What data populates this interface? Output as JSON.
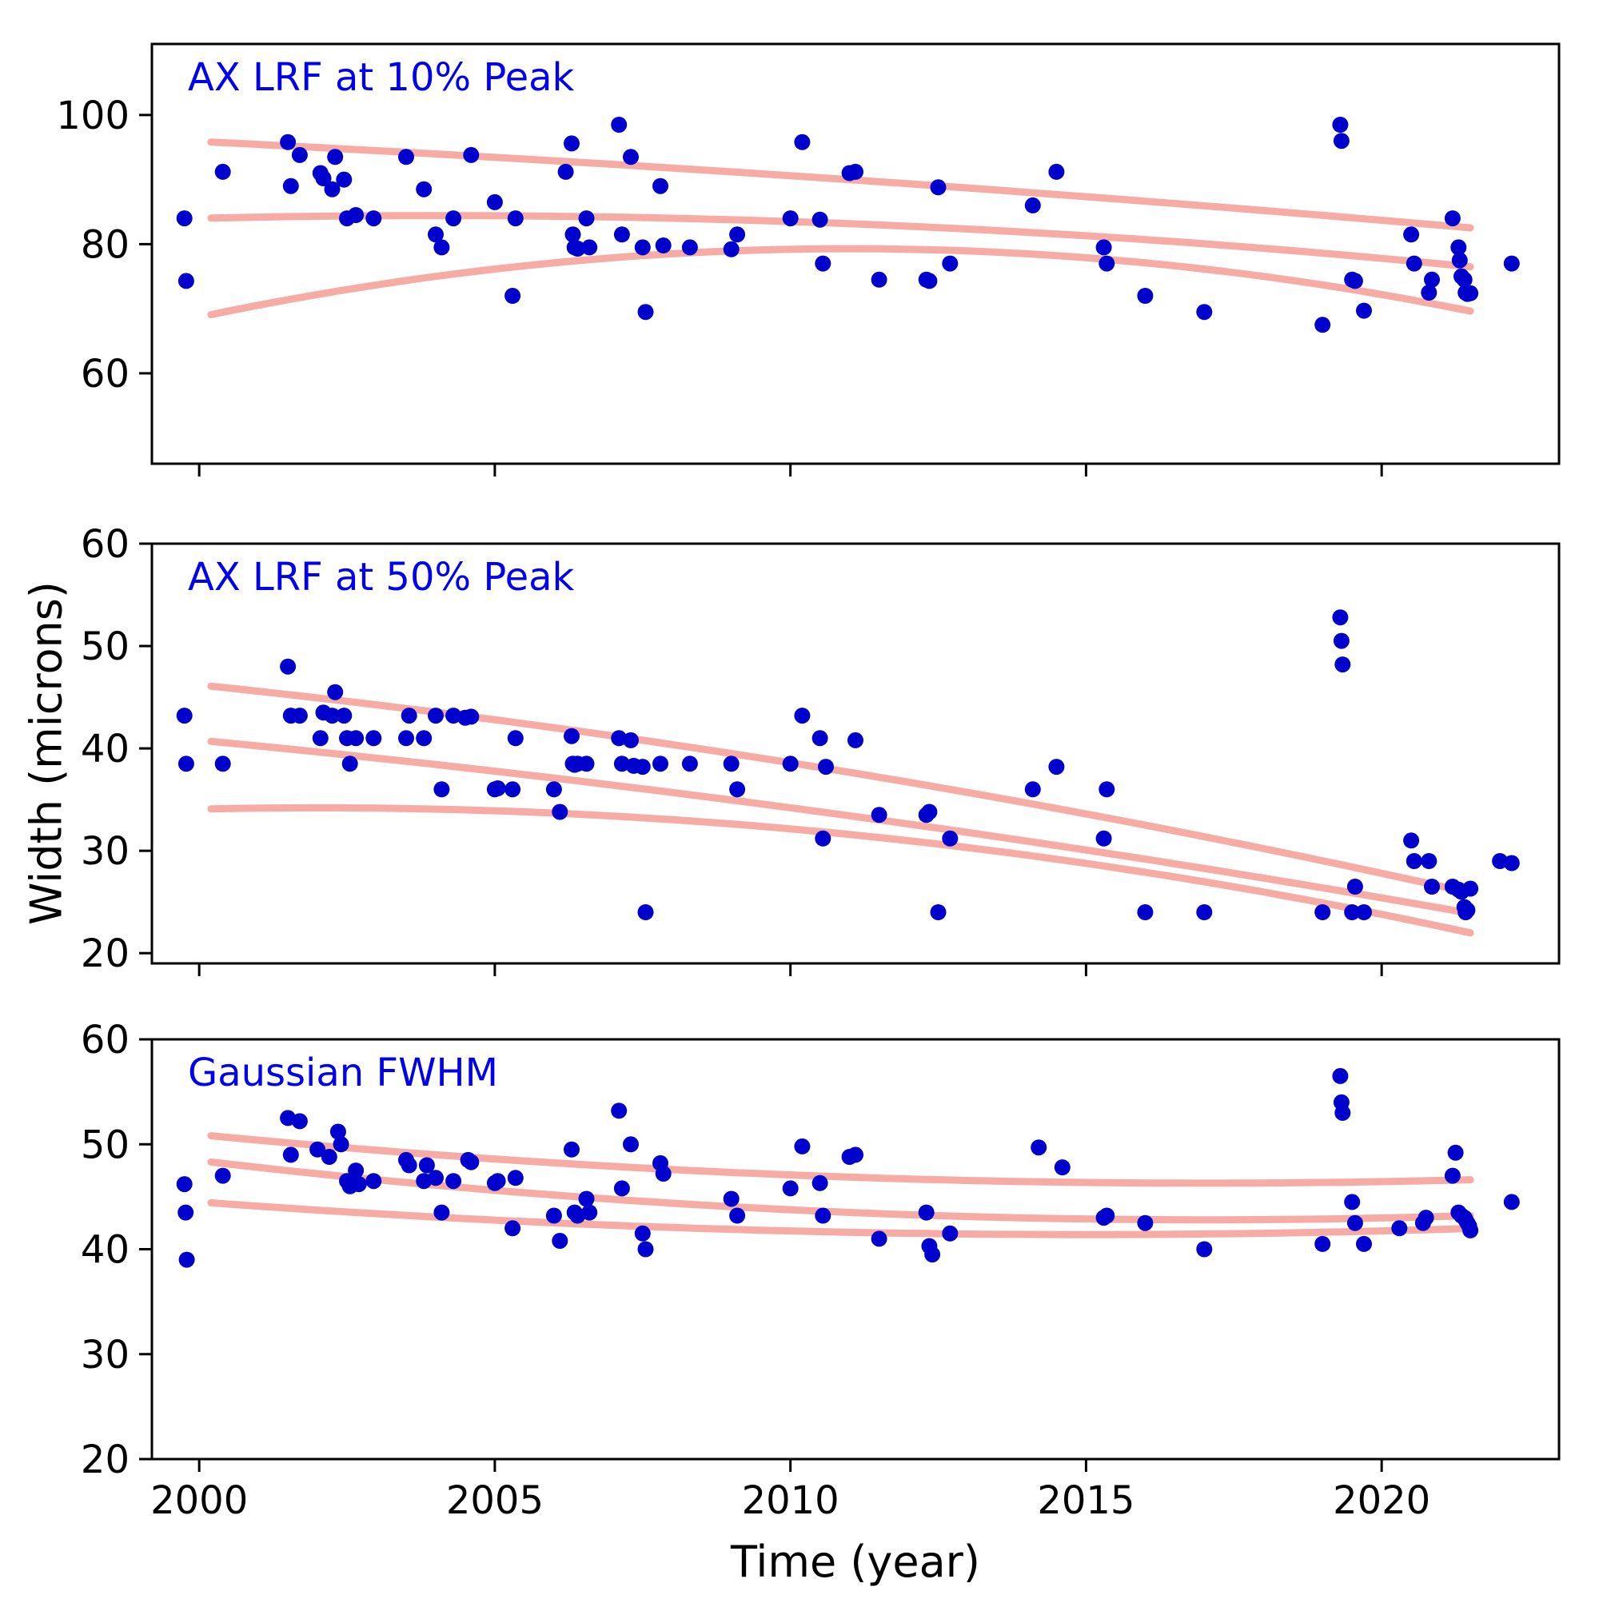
{
  "figure": {
    "background": "#ffffff",
    "point_color": "#0000cd",
    "fit_color": "#f5a6a0",
    "axis_color": "#000000",
    "title_color": "#0000ee"
  },
  "axes": {
    "xlabel": "Time (year)",
    "ylabel": "Width (microns)"
  },
  "chart_data": [
    {
      "type": "scatter",
      "title": "AX LRF at 10% Peak",
      "xlabel": "",
      "ylabel": "",
      "xlim": [
        1999.2,
        2023.0
      ],
      "ylim": [
        46,
        111
      ],
      "xticks": [
        2000,
        2005,
        2010,
        2015,
        2020
      ],
      "show_xtick_labels": false,
      "yticks": [
        60,
        80,
        100
      ],
      "legend": "none",
      "grid": false,
      "points": [
        [
          1999.75,
          84.0
        ],
        [
          1999.78,
          74.3
        ],
        [
          2000.4,
          91.2
        ],
        [
          2001.5,
          95.8
        ],
        [
          2001.55,
          89.0
        ],
        [
          2001.7,
          93.8
        ],
        [
          2002.05,
          91.0
        ],
        [
          2002.1,
          90.2
        ],
        [
          2002.25,
          88.5
        ],
        [
          2002.3,
          93.5
        ],
        [
          2002.45,
          90.0
        ],
        [
          2002.5,
          84.0
        ],
        [
          2002.65,
          84.5
        ],
        [
          2002.95,
          84.0
        ],
        [
          2003.5,
          93.5
        ],
        [
          2003.8,
          88.5
        ],
        [
          2004.0,
          81.5
        ],
        [
          2004.1,
          79.5
        ],
        [
          2004.3,
          84.0
        ],
        [
          2004.6,
          93.8
        ],
        [
          2005.0,
          86.5
        ],
        [
          2005.3,
          72.0
        ],
        [
          2005.35,
          84.0
        ],
        [
          2006.2,
          91.2
        ],
        [
          2006.3,
          95.6
        ],
        [
          2006.32,
          81.5
        ],
        [
          2006.35,
          79.5
        ],
        [
          2006.4,
          79.3
        ],
        [
          2006.55,
          84.0
        ],
        [
          2006.6,
          79.5
        ],
        [
          2007.1,
          98.5
        ],
        [
          2007.15,
          81.5
        ],
        [
          2007.3,
          93.5
        ],
        [
          2007.5,
          79.5
        ],
        [
          2007.55,
          69.5
        ],
        [
          2007.8,
          89.0
        ],
        [
          2007.85,
          79.8
        ],
        [
          2008.3,
          79.5
        ],
        [
          2009.0,
          79.2
        ],
        [
          2009.1,
          81.5
        ],
        [
          2010.0,
          84.0
        ],
        [
          2010.2,
          95.8
        ],
        [
          2010.5,
          83.8
        ],
        [
          2010.55,
          77.0
        ],
        [
          2011.0,
          91.0
        ],
        [
          2011.1,
          91.2
        ],
        [
          2011.5,
          74.5
        ],
        [
          2012.3,
          74.5
        ],
        [
          2012.35,
          74.3
        ],
        [
          2012.5,
          88.8
        ],
        [
          2012.7,
          77.0
        ],
        [
          2014.1,
          86.0
        ],
        [
          2014.5,
          91.2
        ],
        [
          2015.3,
          79.5
        ],
        [
          2015.35,
          77.0
        ],
        [
          2016.0,
          72.0
        ],
        [
          2017.0,
          69.5
        ],
        [
          2019.0,
          67.5
        ],
        [
          2019.3,
          98.5
        ],
        [
          2019.32,
          96.0
        ],
        [
          2019.5,
          74.5
        ],
        [
          2019.55,
          74.3
        ],
        [
          2019.7,
          69.7
        ],
        [
          2020.5,
          81.5
        ],
        [
          2020.55,
          77.0
        ],
        [
          2020.8,
          72.5
        ],
        [
          2020.85,
          74.5
        ],
        [
          2021.2,
          84.0
        ],
        [
          2021.3,
          79.5
        ],
        [
          2021.32,
          77.5
        ],
        [
          2021.35,
          75.0
        ],
        [
          2021.4,
          74.5
        ],
        [
          2021.42,
          72.5
        ],
        [
          2021.45,
          72.3
        ],
        [
          2021.5,
          72.4
        ],
        [
          2022.2,
          77.0
        ]
      ],
      "fits": [
        {
          "a": -0.008,
          "b": -0.45,
          "c": 95.9,
          "x0": 2000.2,
          "x1": 2021.5
        },
        {
          "a": -0.026,
          "b": 0.21,
          "c": 84.0,
          "x0": 2000.2,
          "x1": 2021.5
        },
        {
          "a": -0.0876,
          "b": 1.927,
          "c": 68.7,
          "x0": 2000.2,
          "x1": 2021.5
        }
      ]
    },
    {
      "type": "scatter",
      "title": "AX LRF at 50% Peak",
      "xlabel": "",
      "ylabel": "Width (microns)",
      "xlim": [
        1999.2,
        2023.0
      ],
      "ylim": [
        19,
        60
      ],
      "xticks": [
        2000,
        2005,
        2010,
        2015,
        2020
      ],
      "show_xtick_labels": false,
      "yticks": [
        20,
        30,
        40,
        50,
        60
      ],
      "legend": "none",
      "grid": false,
      "points": [
        [
          1999.75,
          43.2
        ],
        [
          1999.78,
          38.5
        ],
        [
          2000.4,
          38.5
        ],
        [
          2001.5,
          48.0
        ],
        [
          2001.55,
          43.2
        ],
        [
          2001.7,
          43.2
        ],
        [
          2002.05,
          41.0
        ],
        [
          2002.1,
          43.5
        ],
        [
          2002.25,
          43.2
        ],
        [
          2002.3,
          45.5
        ],
        [
          2002.45,
          43.2
        ],
        [
          2002.5,
          41.0
        ],
        [
          2002.55,
          38.5
        ],
        [
          2002.65,
          41.0
        ],
        [
          2002.95,
          41.0
        ],
        [
          2003.5,
          41.0
        ],
        [
          2003.55,
          43.2
        ],
        [
          2003.8,
          41.0
        ],
        [
          2004.0,
          43.2
        ],
        [
          2004.1,
          36.0
        ],
        [
          2004.3,
          43.2
        ],
        [
          2004.5,
          43.0
        ],
        [
          2004.6,
          43.1
        ],
        [
          2005.0,
          36.0
        ],
        [
          2005.05,
          36.1
        ],
        [
          2005.3,
          36.0
        ],
        [
          2005.35,
          41.0
        ],
        [
          2006.0,
          36.0
        ],
        [
          2006.1,
          33.8
        ],
        [
          2006.3,
          41.2
        ],
        [
          2006.32,
          38.5
        ],
        [
          2006.35,
          38.4
        ],
        [
          2006.4,
          38.5
        ],
        [
          2006.55,
          38.5
        ],
        [
          2007.1,
          41.0
        ],
        [
          2007.15,
          38.5
        ],
        [
          2007.3,
          40.8
        ],
        [
          2007.35,
          38.3
        ],
        [
          2007.5,
          38.2
        ],
        [
          2007.55,
          24.0
        ],
        [
          2007.8,
          38.5
        ],
        [
          2008.3,
          38.5
        ],
        [
          2009.0,
          38.5
        ],
        [
          2009.1,
          36.0
        ],
        [
          2010.0,
          38.5
        ],
        [
          2010.2,
          43.2
        ],
        [
          2010.5,
          41.0
        ],
        [
          2010.55,
          31.2
        ],
        [
          2010.6,
          38.2
        ],
        [
          2011.1,
          40.8
        ],
        [
          2011.5,
          33.5
        ],
        [
          2012.3,
          33.5
        ],
        [
          2012.35,
          33.8
        ],
        [
          2012.5,
          24.0
        ],
        [
          2012.7,
          31.2
        ],
        [
          2014.1,
          36.0
        ],
        [
          2014.5,
          38.2
        ],
        [
          2015.3,
          31.2
        ],
        [
          2015.35,
          36.0
        ],
        [
          2016.0,
          24.0
        ],
        [
          2017.0,
          24.0
        ],
        [
          2019.0,
          24.0
        ],
        [
          2019.3,
          52.8
        ],
        [
          2019.32,
          50.5
        ],
        [
          2019.34,
          48.2
        ],
        [
          2019.5,
          24.0
        ],
        [
          2019.55,
          26.5
        ],
        [
          2019.7,
          24.0
        ],
        [
          2020.5,
          31.0
        ],
        [
          2020.55,
          29.0
        ],
        [
          2020.8,
          29.0
        ],
        [
          2020.85,
          26.5
        ],
        [
          2021.2,
          26.5
        ],
        [
          2021.3,
          26.2
        ],
        [
          2021.35,
          26.0
        ],
        [
          2021.4,
          24.5
        ],
        [
          2021.42,
          24.0
        ],
        [
          2021.45,
          24.2
        ],
        [
          2021.5,
          26.3
        ],
        [
          2022.0,
          29.0
        ],
        [
          2022.2,
          28.8
        ]
      ],
      "fits": [
        {
          "a": -0.016,
          "b": -0.6,
          "c": 46.2,
          "x0": 2000.2,
          "x1": 2021.5
        },
        {
          "a": -0.011,
          "b": -0.55,
          "c": 40.8,
          "x0": 2000.2,
          "x1": 2021.5
        },
        {
          "a": -0.0321,
          "b": 0.128,
          "c": 34.07,
          "x0": 2000.2,
          "x1": 2021.5
        }
      ]
    },
    {
      "type": "scatter",
      "title": "Gaussian FWHM",
      "xlabel": "Time (year)",
      "ylabel": "",
      "xlim": [
        1999.2,
        2023.0
      ],
      "ylim": [
        20,
        60
      ],
      "xticks": [
        2000,
        2005,
        2010,
        2015,
        2020
      ],
      "show_xtick_labels": true,
      "yticks": [
        20,
        30,
        40,
        50,
        60
      ],
      "legend": "none",
      "grid": false,
      "points": [
        [
          1999.75,
          46.2
        ],
        [
          1999.77,
          43.5
        ],
        [
          1999.79,
          39.0
        ],
        [
          2000.4,
          47.0
        ],
        [
          2001.5,
          52.5
        ],
        [
          2001.55,
          49.0
        ],
        [
          2001.7,
          52.2
        ],
        [
          2002.0,
          49.5
        ],
        [
          2002.2,
          48.8
        ],
        [
          2002.35,
          51.2
        ],
        [
          2002.4,
          50.0
        ],
        [
          2002.5,
          46.5
        ],
        [
          2002.55,
          46.0
        ],
        [
          2002.65,
          47.5
        ],
        [
          2002.7,
          46.2
        ],
        [
          2002.95,
          46.5
        ],
        [
          2003.5,
          48.5
        ],
        [
          2003.55,
          48.0
        ],
        [
          2003.8,
          46.5
        ],
        [
          2003.85,
          48.0
        ],
        [
          2004.0,
          46.8
        ],
        [
          2004.1,
          43.5
        ],
        [
          2004.3,
          46.5
        ],
        [
          2004.55,
          48.5
        ],
        [
          2004.6,
          48.3
        ],
        [
          2005.0,
          46.3
        ],
        [
          2005.05,
          46.5
        ],
        [
          2005.3,
          42.0
        ],
        [
          2005.35,
          46.8
        ],
        [
          2006.0,
          43.2
        ],
        [
          2006.1,
          40.8
        ],
        [
          2006.3,
          49.5
        ],
        [
          2006.35,
          43.5
        ],
        [
          2006.4,
          43.2
        ],
        [
          2006.55,
          44.8
        ],
        [
          2006.6,
          43.5
        ],
        [
          2007.1,
          53.2
        ],
        [
          2007.15,
          45.8
        ],
        [
          2007.3,
          50.0
        ],
        [
          2007.5,
          41.5
        ],
        [
          2007.55,
          40.0
        ],
        [
          2007.8,
          48.2
        ],
        [
          2007.85,
          47.2
        ],
        [
          2009.0,
          44.8
        ],
        [
          2009.1,
          43.2
        ],
        [
          2010.0,
          45.8
        ],
        [
          2010.2,
          49.8
        ],
        [
          2010.5,
          46.3
        ],
        [
          2010.55,
          43.2
        ],
        [
          2011.0,
          48.8
        ],
        [
          2011.1,
          49.0
        ],
        [
          2011.5,
          41.0
        ],
        [
          2012.3,
          43.5
        ],
        [
          2012.35,
          40.3
        ],
        [
          2012.4,
          39.5
        ],
        [
          2012.7,
          41.5
        ],
        [
          2014.2,
          49.7
        ],
        [
          2014.6,
          47.8
        ],
        [
          2015.3,
          43.0
        ],
        [
          2015.35,
          43.2
        ],
        [
          2016.0,
          42.5
        ],
        [
          2017.0,
          40.0
        ],
        [
          2019.0,
          40.5
        ],
        [
          2019.3,
          56.5
        ],
        [
          2019.32,
          54.0
        ],
        [
          2019.34,
          53.0
        ],
        [
          2019.5,
          44.5
        ],
        [
          2019.55,
          42.5
        ],
        [
          2019.7,
          40.5
        ],
        [
          2020.3,
          42.0
        ],
        [
          2020.7,
          42.5
        ],
        [
          2020.75,
          43.0
        ],
        [
          2021.2,
          47.0
        ],
        [
          2021.25,
          49.2
        ],
        [
          2021.3,
          43.5
        ],
        [
          2021.35,
          43.2
        ],
        [
          2021.4,
          43.0
        ],
        [
          2021.42,
          42.8
        ],
        [
          2021.45,
          42.5
        ],
        [
          2021.48,
          42.2
        ],
        [
          2021.5,
          41.8
        ],
        [
          2022.2,
          44.5
        ]
      ],
      "fits": [
        {
          "a": 0.016,
          "b": -0.544,
          "c": 50.92,
          "x0": 2000.2,
          "x1": 2021.5
        },
        {
          "a": 0.0195,
          "b": -0.663,
          "c": 48.44,
          "x0": 2000.2,
          "x1": 2021.5
        },
        {
          "a": 0.0138,
          "b": -0.414,
          "c": 44.5,
          "x0": 2000.2,
          "x1": 2021.5
        }
      ]
    }
  ]
}
